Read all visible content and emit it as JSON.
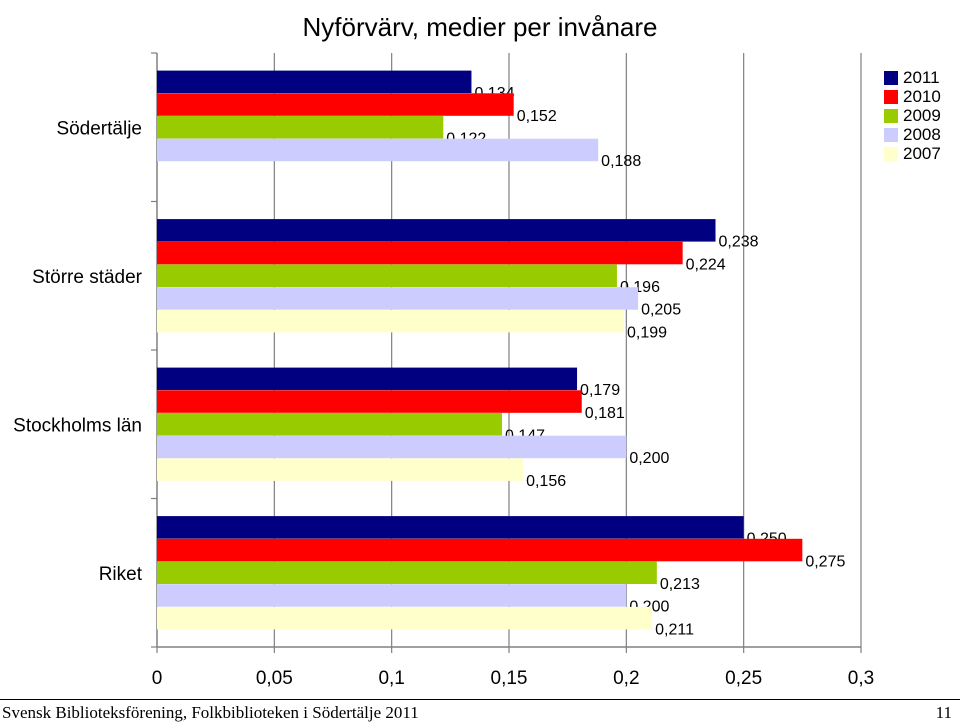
{
  "page": {
    "footer_text": "Svensk Biblioteksförening, Folkbiblioteken i Södertälje 2011",
    "page_number": "11"
  },
  "chart_data": {
    "type": "bar",
    "orientation": "horizontal",
    "title": "Nyförvärv, medier per invånare",
    "categories": [
      "Södertälje",
      "Större städer",
      "Stockholms län",
      "Riket"
    ],
    "series": [
      {
        "name": "2011",
        "color": "#000080",
        "values": [
          0.134,
          0.238,
          0.179,
          0.25
        ],
        "labels": [
          "0,134",
          "0,238",
          "0,179",
          "0,250"
        ]
      },
      {
        "name": "2010",
        "color": "#FF0000",
        "values": [
          0.152,
          0.224,
          0.181,
          0.275
        ],
        "labels": [
          "0,152",
          "0,224",
          "0,181",
          "0,275"
        ]
      },
      {
        "name": "2009",
        "color": "#99CC00",
        "values": [
          0.122,
          0.196,
          0.147,
          0.213
        ],
        "labels": [
          "0,122",
          "0,196",
          "0,147",
          "0,213"
        ]
      },
      {
        "name": "2008",
        "color": "#CCCCFF",
        "values": [
          0.188,
          0.205,
          0.2,
          0.2
        ],
        "labels": [
          "0,188",
          "0,205",
          "0,200",
          "0,200"
        ]
      },
      {
        "name": "2007",
        "color": "#FFFFCC",
        "values": [
          null,
          0.199,
          0.156,
          0.211
        ],
        "labels": [
          null,
          "0,199",
          "0,156",
          "0,211"
        ]
      }
    ],
    "xlim": [
      0,
      0.3
    ],
    "xticks": [
      0,
      0.05,
      0.1,
      0.15,
      0.2,
      0.25,
      0.3
    ],
    "xtick_labels": [
      "0",
      "0,05",
      "0,1",
      "0,15",
      "0,2",
      "0,25",
      "0,3"
    ],
    "grid": true,
    "legend_position": "top-right"
  }
}
